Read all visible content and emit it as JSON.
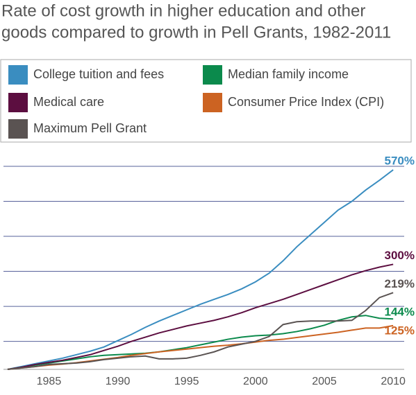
{
  "chart_data": {
    "type": "line",
    "title_lines": [
      "Rate of cost growth in higher education and other",
      "goods compared to growth in Pell Grants, 1982-2011"
    ],
    "x": [
      1982,
      1983,
      1984,
      1985,
      1986,
      1987,
      1988,
      1989,
      1990,
      1991,
      1992,
      1993,
      1994,
      1995,
      1996,
      1997,
      1998,
      1999,
      2000,
      2001,
      2002,
      2003,
      2004,
      2005,
      2006,
      2007,
      2008,
      2009,
      2010
    ],
    "series": [
      {
        "name": "College tuition and fees",
        "color": "#3a8dc0",
        "end_label": "570%",
        "values": [
          0,
          8,
          16,
          24,
          32,
          42,
          52,
          64,
          82,
          100,
          120,
          138,
          154,
          170,
          186,
          200,
          214,
          230,
          250,
          275,
          310,
          350,
          385,
          420,
          455,
          480,
          512,
          540,
          570
        ]
      },
      {
        "name": "Median family income",
        "color": "#0b8a4c",
        "end_label": "144%",
        "values": [
          0,
          6,
          12,
          18,
          24,
          30,
          36,
          40,
          42,
          44,
          46,
          50,
          56,
          62,
          70,
          78,
          86,
          92,
          96,
          98,
          102,
          108,
          116,
          126,
          140,
          150,
          154,
          146,
          144
        ]
      },
      {
        "name": "Medical care",
        "color": "#5c0e40",
        "end_label": "300%",
        "values": [
          0,
          6,
          14,
          20,
          26,
          34,
          42,
          54,
          66,
          80,
          92,
          104,
          114,
          124,
          132,
          140,
          150,
          162,
          176,
          188,
          200,
          214,
          228,
          242,
          256,
          270,
          282,
          292,
          300
        ]
      },
      {
        "name": "Consumer Price Index (CPI)",
        "color": "#cc6322",
        "end_label": "125%",
        "values": [
          0,
          4,
          8,
          12,
          15,
          19,
          24,
          29,
          34,
          40,
          45,
          50,
          54,
          58,
          62,
          66,
          69,
          73,
          78,
          83,
          86,
          91,
          96,
          101,
          106,
          112,
          118,
          118,
          125
        ]
      },
      {
        "name": "Maximum Pell Grant",
        "color": "#5a5352",
        "end_label": "219%",
        "values": [
          0,
          4,
          8,
          14,
          16,
          18,
          22,
          28,
          32,
          36,
          38,
          30,
          30,
          32,
          40,
          50,
          64,
          72,
          80,
          94,
          128,
          136,
          138,
          138,
          138,
          140,
          168,
          205,
          219
        ]
      }
    ],
    "xlim": [
      1981.7,
      2010.8
    ],
    "xticks": [
      1985,
      1990,
      1995,
      2000,
      2005,
      2010
    ],
    "ylim": [
      0,
      580
    ],
    "yticks": [
      0,
      80,
      180,
      280,
      380,
      480,
      580
    ],
    "grid": true
  }
}
